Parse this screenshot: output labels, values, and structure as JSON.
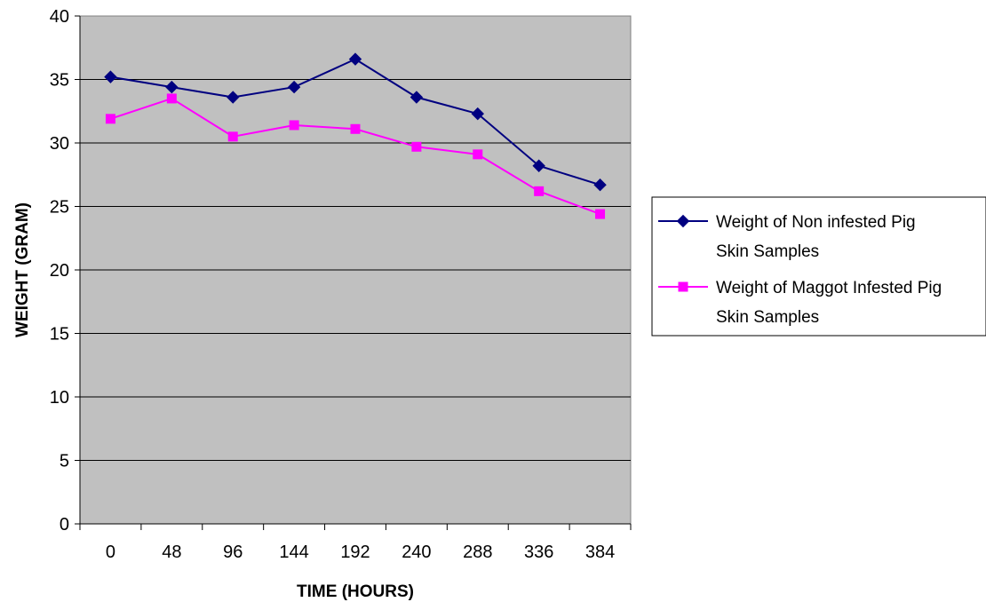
{
  "chart_data": {
    "type": "line",
    "title": "",
    "xlabel": "TIME (HOURS)",
    "ylabel": "WEIGHT (GRAM)",
    "categories": [
      "0",
      "48",
      "96",
      "144",
      "192",
      "240",
      "288",
      "336",
      "384"
    ],
    "ylim": [
      0,
      40
    ],
    "yticks": [
      0,
      5,
      10,
      15,
      20,
      25,
      30,
      35,
      40
    ],
    "grid": true,
    "legend_position": "right",
    "plot_background": "#c0c0c0",
    "series": [
      {
        "name": "Weight of Non infested Pig Skin Samples",
        "legend_lines": [
          "Weight of Non infested Pig",
          "Skin Samples"
        ],
        "color": "#000080",
        "marker": "diamond",
        "values": [
          35.2,
          34.4,
          33.6,
          34.4,
          36.6,
          33.6,
          32.3,
          28.2,
          26.7
        ]
      },
      {
        "name": "Weight of Maggot Infested Pig Skin Samples",
        "legend_lines": [
          "Weight of Maggot Infested Pig",
          "Skin Samples"
        ],
        "color": "#ff00ff",
        "marker": "square",
        "values": [
          31.9,
          33.5,
          30.5,
          31.4,
          31.1,
          29.7,
          29.1,
          26.2,
          24.4
        ]
      }
    ]
  }
}
